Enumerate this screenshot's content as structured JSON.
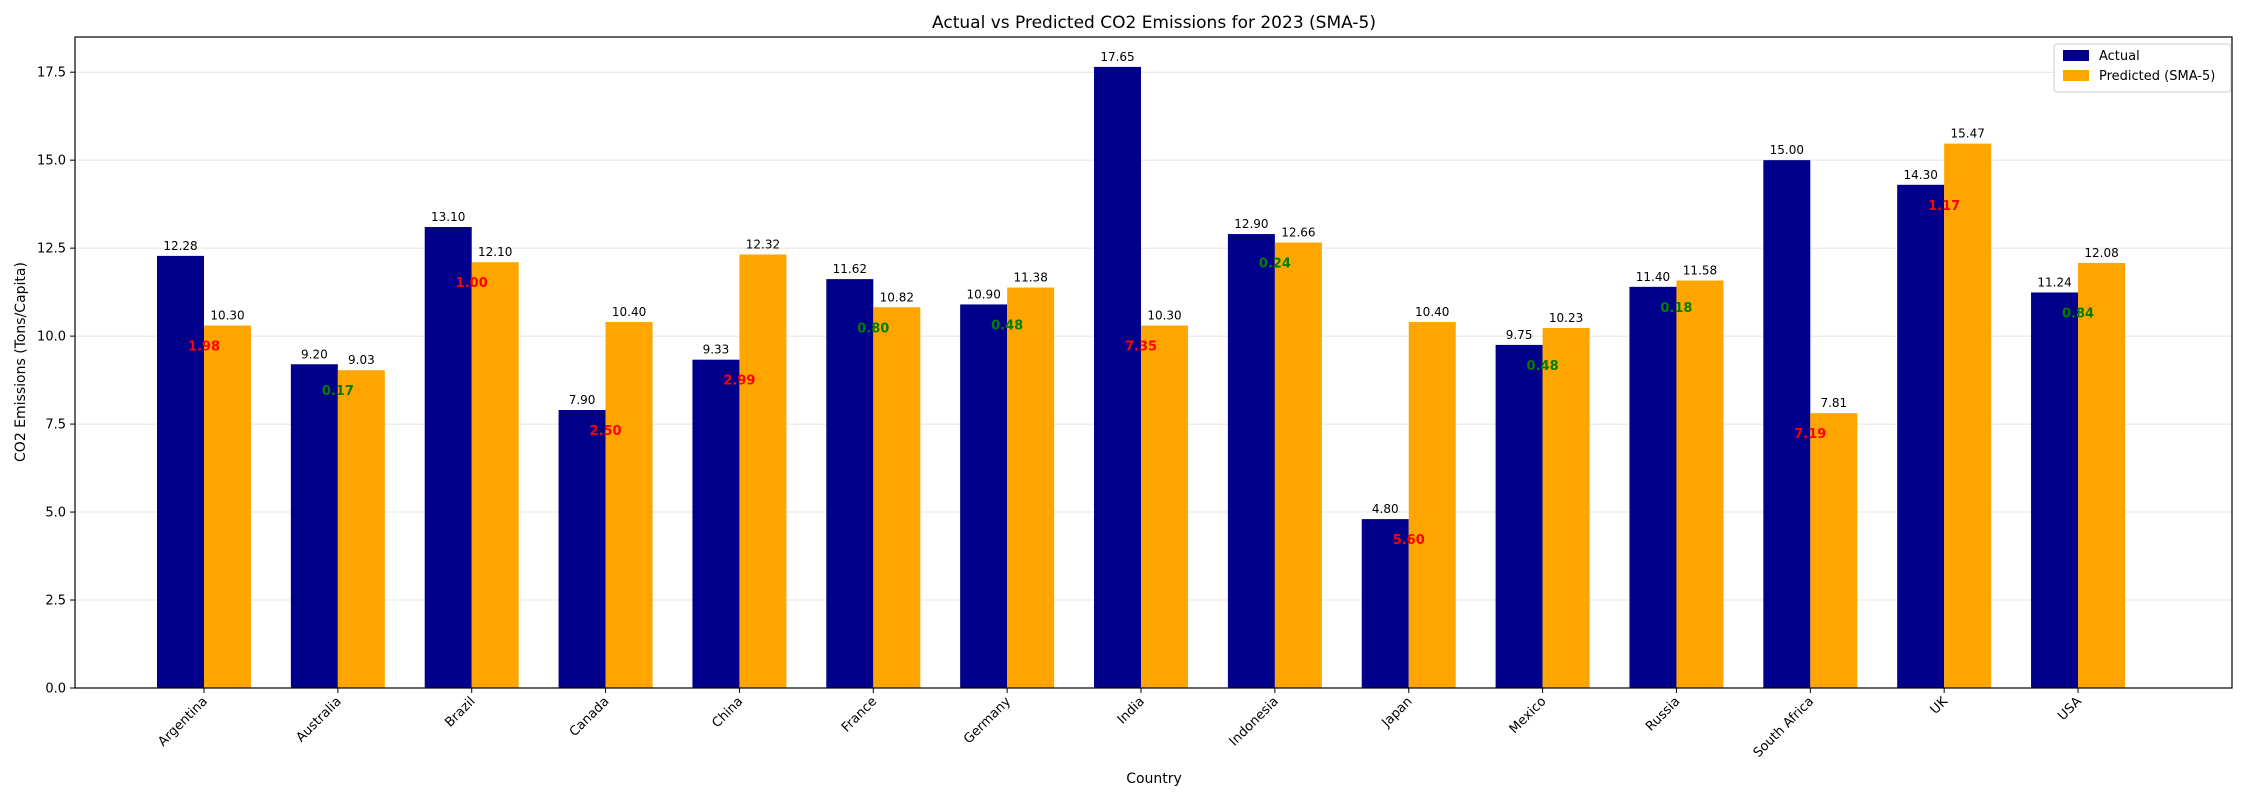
{
  "chart_data": {
    "type": "bar",
    "title": "Actual vs Predicted CO2 Emissions for 2023 (SMA-5)",
    "xlabel": "Country",
    "ylabel": "CO2 Emissions (Tons/Capita)",
    "ylim": [
      0,
      18.5
    ],
    "yticks": [
      "0.0",
      "2.5",
      "5.0",
      "7.5",
      "10.0",
      "12.5",
      "15.0",
      "17.5"
    ],
    "grid": "y",
    "legend_position": "top-right",
    "categories": [
      "Argentina",
      "Australia",
      "Brazil",
      "Canada",
      "China",
      "France",
      "Germany",
      "India",
      "Indonesia",
      "Japan",
      "Mexico",
      "Russia",
      "South Africa",
      "UK",
      "USA"
    ],
    "series": [
      {
        "name": "Actual",
        "color": "#00008b",
        "values": [
          12.28,
          9.2,
          13.1,
          7.9,
          9.33,
          11.62,
          10.9,
          17.65,
          12.9,
          4.8,
          9.75,
          11.4,
          15.0,
          14.3,
          11.24
        ],
        "labels": [
          "12.28",
          "9.20",
          "13.10",
          "7.90",
          "9.33",
          "11.62",
          "10.90",
          "17.65",
          "12.90",
          "4.80",
          "9.75",
          "11.40",
          "15.00",
          "14.30",
          "11.24"
        ]
      },
      {
        "name": "Predicted (SMA-5)",
        "color": "#ffa500",
        "values": [
          10.3,
          9.03,
          12.1,
          10.4,
          12.32,
          10.82,
          11.38,
          10.3,
          12.66,
          10.4,
          10.23,
          11.58,
          7.81,
          15.47,
          12.08
        ],
        "labels": [
          "10.30",
          "9.03",
          "12.10",
          "10.40",
          "12.32",
          "10.82",
          "11.38",
          "10.30",
          "12.66",
          "10.40",
          "10.23",
          "11.58",
          "7.81",
          "15.47",
          "12.08"
        ]
      }
    ],
    "differences": {
      "values": [
        1.98,
        0.17,
        1.0,
        2.5,
        2.99,
        0.8,
        0.48,
        7.35,
        0.24,
        5.6,
        0.48,
        0.18,
        7.19,
        1.17,
        0.84
      ],
      "labels": [
        "1.98",
        "0.17",
        "1.00",
        "2.50",
        "2.99",
        "0.80",
        "0.48",
        "7.35",
        "0.24",
        "5.60",
        "0.48",
        "0.18",
        "7.19",
        "1.17",
        "0.84"
      ],
      "colors": [
        "#ff0000",
        "#008000",
        "#ff0000",
        "#ff0000",
        "#ff0000",
        "#008000",
        "#008000",
        "#ff0000",
        "#008000",
        "#ff0000",
        "#008000",
        "#008000",
        "#ff0000",
        "#ff0000",
        "#008000"
      ]
    }
  }
}
